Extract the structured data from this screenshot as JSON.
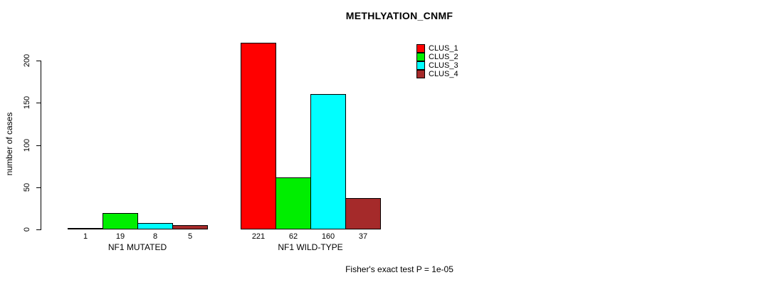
{
  "page": {
    "background": "#ffffff",
    "text_color": "#000000"
  },
  "chart_data": {
    "type": "bar",
    "title": "METHLYATION_CNMF",
    "xlabel": "",
    "ylabel": "number of cases",
    "categories": [
      "NF1 MUTATED",
      "NF1 WILD-TYPE"
    ],
    "series": [
      {
        "name": "CLUS_1",
        "color": "#FF0000",
        "values": [
          1,
          221
        ]
      },
      {
        "name": "CLUS_2",
        "color": "#00EE00",
        "values": [
          19,
          62
        ]
      },
      {
        "name": "CLUS_3",
        "color": "#00FFFF",
        "values": [
          8,
          160
        ]
      },
      {
        "name": "CLUS_4",
        "color": "#A52A2A",
        "values": [
          5,
          37
        ]
      }
    ],
    "yticks": [
      0,
      50,
      100,
      150,
      200
    ],
    "ylim": [
      0,
      200
    ],
    "grid": false,
    "bar_border_color": "#000000",
    "bar_value_labels_shown": true,
    "legend_position": "top-right-inside",
    "annotation": "Fisher's exact test P = 1e-05"
  }
}
